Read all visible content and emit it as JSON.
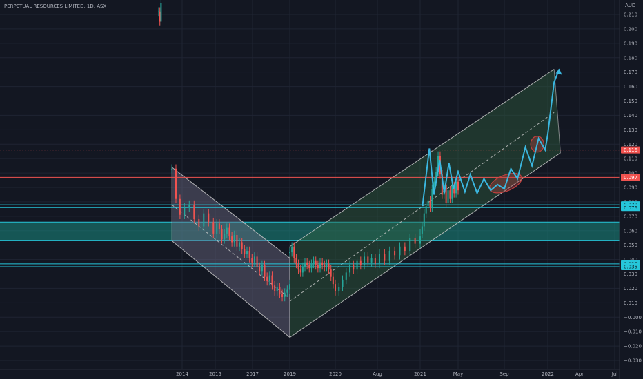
{
  "header": {
    "title": "PERPETUAL RESOURCES LIMITED, 1D, ASX",
    "currency": "AUD"
  },
  "colors": {
    "background": "#131722",
    "grid": "#1f2433",
    "text": "#b2b5be",
    "bull_candle": "#26a69a",
    "bear_candle": "#ef5350",
    "cyan_line": "#26c6da",
    "cyan_zone": "#1a8a80",
    "red_marker": "#ef5350",
    "channel_fill_green": "#2e5d3e",
    "channel_fill_grey": "#6d6b82",
    "projection": "#3bb7e0",
    "ellipse": "#c2403f"
  },
  "chart_data": {
    "type": "candlestick",
    "title": "PERPETUAL RESOURCES LIMITED, 1D, ASX",
    "ylabel": "AUD",
    "ylim": [
      -0.035,
      0.218
    ],
    "y_ticks": [
      0.21,
      0.2,
      0.19,
      0.18,
      0.17,
      0.16,
      0.15,
      0.14,
      0.13,
      0.12,
      0.11,
      0.1,
      0.09,
      0.08,
      0.07,
      0.06,
      0.05,
      0.04,
      0.03,
      0.02,
      0.01,
      -0.0,
      -0.01,
      -0.02,
      -0.03
    ],
    "y_tick_labels": [
      "0.210",
      "0.200",
      "0.190",
      "0.180",
      "0.170",
      "0.160",
      "0.150",
      "0.140",
      "0.130",
      "0.120",
      "0.110",
      "0.100",
      "0.090",
      "0.080",
      "0.070",
      "0.060",
      "0.050",
      "0.040",
      "0.030",
      "0.020",
      "0.010",
      "−0.000",
      "−0.010",
      "−0.020",
      "−0.030"
    ],
    "x_ticks": [
      {
        "label": "2014",
        "t": 2013.9
      },
      {
        "label": "2015",
        "t": 2014.85
      },
      {
        "label": "2017",
        "t": 2016.9
      },
      {
        "label": "2019",
        "t": 2018.95
      },
      {
        "label": "2020",
        "t": 2020.0
      },
      {
        "label": "Aug",
        "t": 2020.58
      },
      {
        "label": "2021",
        "t": 2021.0
      },
      {
        "label": "May",
        "t": 2021.33
      },
      {
        "label": "Sep",
        "t": 2021.67
      },
      {
        "label": "2022",
        "t": 2022.0
      },
      {
        "label": "Apr",
        "t": 2022.25
      },
      {
        "label": "Jul",
        "t": 2022.5
      }
    ],
    "horizontal_levels": [
      {
        "value": 0.116,
        "label": "0.116",
        "style": "dotted",
        "color": "#ef5350"
      },
      {
        "value": 0.097,
        "label": "0.097",
        "style": "solid",
        "color": "#ef5350"
      },
      {
        "value": 0.078,
        "label": "0.078",
        "style": "solid",
        "color": "#26c6da"
      },
      {
        "value": 0.076,
        "label": "0.076",
        "style": "solid",
        "color": "#26c6da"
      },
      {
        "value": 0.037,
        "label": "0.037",
        "style": "solid",
        "color": "#26c6da"
      },
      {
        "value": 0.035,
        "label": "0.035",
        "style": "solid",
        "color": "#26c6da"
      }
    ],
    "zones": [
      {
        "from": 0.053,
        "to": 0.066,
        "color": "#1a8a80"
      }
    ],
    "descending_channel": {
      "upper": [
        [
          2013.55,
          0.104
        ],
        [
          2018.95,
          0.041
        ]
      ],
      "lower": [
        [
          2013.55,
          0.053
        ],
        [
          2018.95,
          -0.014
        ]
      ],
      "mid": [
        [
          2013.55,
          0.078
        ],
        [
          2018.95,
          0.013
        ]
      ]
    },
    "ascending_channel": {
      "upper": [
        [
          2018.95,
          0.049
        ],
        [
          2022.05,
          0.172
        ]
      ],
      "lower": [
        [
          2018.95,
          -0.014
        ],
        [
          2022.1,
          0.114
        ]
      ],
      "mid": [
        [
          2018.95,
          0.011
        ],
        [
          2022.05,
          0.142
        ]
      ]
    },
    "projection_path": [
      [
        2021.02,
        0.077
      ],
      [
        2021.08,
        0.117
      ],
      [
        2021.12,
        0.085
      ],
      [
        2021.17,
        0.109
      ],
      [
        2021.21,
        0.086
      ],
      [
        2021.25,
        0.107
      ],
      [
        2021.29,
        0.089
      ],
      [
        2021.33,
        0.101
      ],
      [
        2021.38,
        0.087
      ],
      [
        2021.42,
        0.099
      ],
      [
        2021.47,
        0.086
      ],
      [
        2021.52,
        0.096
      ],
      [
        2021.57,
        0.088
      ],
      [
        2021.62,
        0.092
      ],
      [
        2021.67,
        0.089
      ],
      [
        2021.72,
        0.103
      ],
      [
        2021.77,
        0.096
      ],
      [
        2021.83,
        0.118
      ],
      [
        2021.88,
        0.105
      ],
      [
        2021.93,
        0.124
      ],
      [
        2021.98,
        0.116
      ],
      [
        2022.0,
        0.127
      ],
      [
        2022.05,
        0.163
      ],
      [
        2022.09,
        0.172
      ]
    ],
    "ellipses": [
      {
        "cx": 2021.68,
        "cy": 0.093,
        "rx": 0.13,
        "ry": 0.0055,
        "angle": -22
      },
      {
        "cx": 2021.92,
        "cy": 0.12,
        "rx": 0.05,
        "ry": 0.0055,
        "angle": 0
      }
    ],
    "series": [
      {
        "segment": "2013",
        "t": [
          2013.1,
          2013.14,
          2013.18
        ],
        "values": [
          0.212,
          0.205,
          0.218
        ]
      },
      {
        "segment": "2013-2019",
        "t_start": 2013.55,
        "t_end": 2018.95,
        "values": [
          0.103,
          0.082,
          0.071,
          0.076,
          0.078,
          0.068,
          0.063,
          0.072,
          0.066,
          0.058,
          0.065,
          0.061,
          0.054,
          0.058,
          0.062,
          0.056,
          0.052,
          0.057,
          0.049,
          0.052,
          0.047,
          0.044,
          0.046,
          0.041,
          0.038,
          0.042,
          0.035,
          0.032,
          0.036,
          0.028,
          0.025,
          0.029,
          0.022,
          0.018,
          0.021,
          0.016,
          0.014,
          0.017,
          0.019,
          0.023
        ]
      },
      {
        "segment": "2019-2021",
        "t_start": 2018.95,
        "t_end": 2021.0,
        "values": [
          0.045,
          0.049,
          0.041,
          0.037,
          0.033,
          0.031,
          0.035,
          0.038,
          0.036,
          0.034,
          0.037,
          0.039,
          0.036,
          0.034,
          0.038,
          0.036,
          0.035,
          0.037,
          0.033,
          0.028,
          0.023,
          0.018,
          0.021,
          0.026,
          0.031,
          0.036,
          0.033,
          0.039,
          0.036,
          0.042,
          0.038,
          0.041,
          0.037,
          0.044,
          0.039,
          0.046,
          0.043,
          0.049,
          0.046,
          0.055,
          0.051,
          0.056
        ]
      },
      {
        "segment": "2021",
        "t_start": 2021.0,
        "t_end": 2021.33,
        "values": [
          0.058,
          0.063,
          0.072,
          0.077,
          0.081,
          0.076,
          0.089,
          0.094,
          0.101,
          0.112,
          0.099,
          0.085,
          0.092,
          0.079,
          0.088,
          0.082,
          0.091,
          0.086,
          0.094,
          0.088
        ]
      }
    ]
  }
}
